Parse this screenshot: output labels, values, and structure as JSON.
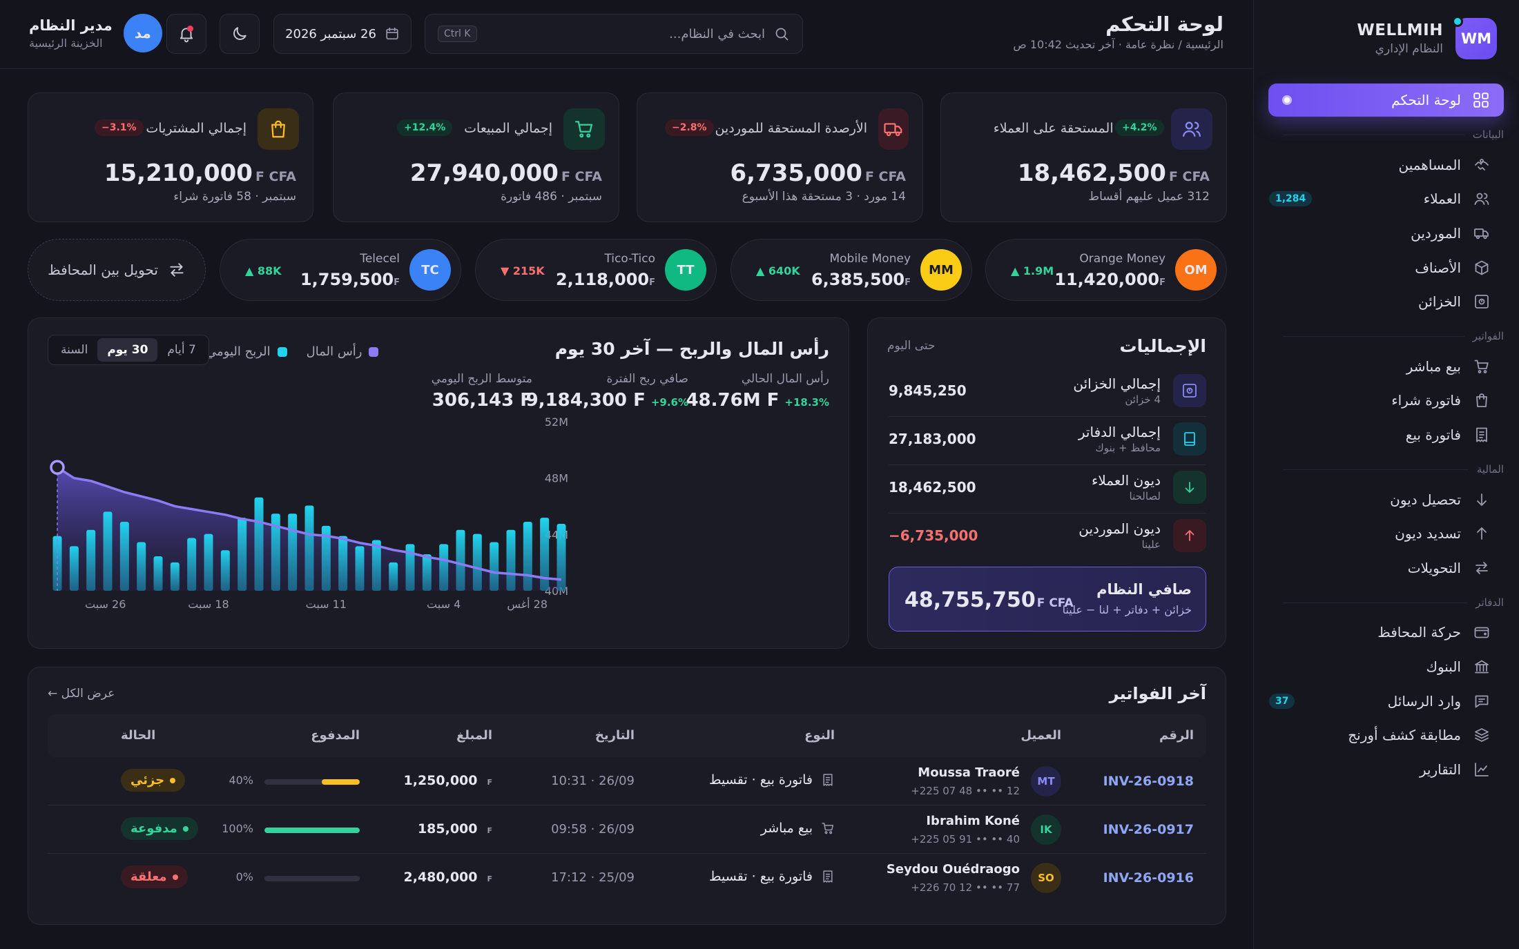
{
  "sidebar": {
    "brand_name": "WELLMIH",
    "brand_sub": "النظام الإداري",
    "brand_logo": "WM",
    "active_item": "لوحة التحكم",
    "sections": {
      "data": "البيانات",
      "invoices": "الفواتير",
      "finance": "المالية",
      "ledgers": "الدفاتر"
    },
    "items": [
      {
        "label": "المساهمين",
        "icon": "handshake-icon"
      },
      {
        "label": "العملاء",
        "icon": "users-icon",
        "badge": "1,284"
      },
      {
        "label": "الموردين",
        "icon": "truck-icon"
      },
      {
        "label": "الأصناف",
        "icon": "box-icon"
      },
      {
        "label": "الخزائن",
        "icon": "safe-icon"
      },
      {
        "label": "بيع مباشر",
        "icon": "cart-icon"
      },
      {
        "label": "فاتورة شراء",
        "icon": "bag-icon"
      },
      {
        "label": "فاتورة بيع",
        "icon": "receipt-icon"
      },
      {
        "label": "تحصيل ديون",
        "icon": "arrow-down-icon"
      },
      {
        "label": "تسديد ديون",
        "icon": "arrow-up-icon"
      },
      {
        "label": "التحويلات",
        "icon": "transfer-icon"
      },
      {
        "label": "حركة المحافظ",
        "icon": "wallet-icon"
      },
      {
        "label": "البنوك",
        "icon": "bank-icon"
      },
      {
        "label": "وارد الرسائل",
        "icon": "message-icon",
        "badge": "37"
      },
      {
        "label": "مطابقة كشف أورنج",
        "icon": "layers-icon"
      },
      {
        "label": "التقارير",
        "icon": "chart-line-icon"
      }
    ]
  },
  "header": {
    "title": "لوحة التحكم",
    "breadcrumb": "الرئيسية / نظرة عامة · آخر تحديث 10:42 ص",
    "search_placeholder": "ابحث في النظام...",
    "search_shortcut": "Ctrl K",
    "date": "26 سبتمبر 2026",
    "user_name": "مدير النظام",
    "user_role": "الخزينة الرئيسية",
    "user_initials": "مد"
  },
  "stats": [
    {
      "label": "الأرصدة المستحقة على العملاء",
      "change": "+4.2%",
      "value": "18,462,500",
      "unit": "F CFA",
      "sub": "312 عميل عليهم أقساط",
      "icon": "users-icon",
      "trend": "up",
      "color": "#8b8bf5"
    },
    {
      "label": "الأرصدة المستحقة للموردين",
      "change": "−2.8%",
      "value": "6,735,000",
      "unit": "F CFA",
      "sub": "14 مورد · 3 مستحقة هذا الأسبوع",
      "icon": "truck-icon",
      "trend": "down",
      "color": "#f87171"
    },
    {
      "label": "إجمالي المبيعات",
      "change": "+12.4%",
      "value": "27,940,000",
      "unit": "F CFA",
      "sub": "سبتمبر · 486 فاتورة",
      "icon": "cart-icon",
      "trend": "up",
      "color": "#34d399"
    },
    {
      "label": "إجمالي المشتريات",
      "change": "−3.1%",
      "value": "15,210,000",
      "unit": "F CFA",
      "sub": "سبتمبر · 58 فاتورة شراء",
      "icon": "bag-icon",
      "trend": "down",
      "color": "#fbbf24"
    }
  ],
  "wallets": [
    {
      "name": "Orange Money",
      "initials": "OM",
      "value": "11,420,000",
      "unit": "F",
      "change": "▲ 1.9M",
      "trend": "up",
      "color": "#f97316"
    },
    {
      "name": "Mobile Money",
      "initials": "MM",
      "value": "6,385,500",
      "unit": "F",
      "change": "▲ 640K",
      "trend": "up",
      "color": "#facc15"
    },
    {
      "name": "Tico-Tico",
      "initials": "TT",
      "value": "2,118,000",
      "unit": "F",
      "change": "▼ 215K",
      "trend": "down",
      "color": "#10b981"
    },
    {
      "name": "Telecel",
      "initials": "TC",
      "value": "1,759,500",
      "unit": "F",
      "change": "▲ 88K",
      "trend": "up",
      "color": "#3b82f6"
    }
  ],
  "transfer_label": "تحويل بين المحافظ",
  "chart_panel": {
    "title": "رأس المال والربح — آخر 30 يوم",
    "legend_capital": "رأس المال",
    "legend_profit": "الربح اليومي",
    "ranges": [
      "7 أيام",
      "30 يوم",
      "السنة"
    ],
    "active_range": "30 يوم",
    "kpi_capital_label": "رأس المال الحالي",
    "kpi_capital_value": "48.76M F",
    "kpi_capital_change": "+18.3%",
    "kpi_profit_label": "صافي ربح الفترة",
    "kpi_profit_value": "9,184,300 F",
    "kpi_profit_change": "+9.6%",
    "kpi_avg_label": "متوسط الربح اليومي",
    "kpi_avg_value": "306,143 F"
  },
  "chart_data": {
    "type": "line",
    "x_tick_labels": [
      "28 أغس",
      "4 سبت",
      "11 سبت",
      "18 سبت",
      "26 سبت"
    ],
    "y_tick_labels": [
      "40M",
      "44M",
      "48M",
      "52M"
    ],
    "ylim": [
      40,
      52
    ],
    "grid": false,
    "x_direction": "right-to-left",
    "series": [
      {
        "name": "رأس المال",
        "color": "#8b7cf6",
        "values": [
          40.8,
          40.9,
          41.1,
          41.2,
          41.3,
          41.6,
          41.9,
          42.2,
          42.4,
          42.7,
          42.9,
          43.2,
          43.4,
          43.7,
          43.9,
          44.0,
          44.3,
          44.6,
          44.9,
          45.1,
          45.4,
          45.6,
          45.8,
          46.0,
          46.4,
          46.7,
          47.0,
          47.4,
          47.8,
          48.0,
          48.76
        ]
      },
      {
        "name": "الربح اليومي",
        "color": "#22d3ee",
        "values": [
          330,
          360,
          340,
          300,
          240,
          280,
          300,
          230,
          180,
          230,
          140,
          250,
          220,
          270,
          320,
          420,
          380,
          380,
          460,
          360,
          200,
          280,
          260,
          140,
          170,
          240,
          340,
          390,
          300,
          220,
          270
        ]
      }
    ]
  },
  "totals": {
    "title": "الإجماليات",
    "subtitle": "حتى اليوم",
    "rows": [
      {
        "label": "إجمالي الخزائن",
        "sub": "4 خزائن",
        "value": "9,845,250",
        "icon": "safe-icon",
        "color": "#8b8bf5"
      },
      {
        "label": "إجمالي الدفاتر",
        "sub": "محافظ + بنوك",
        "value": "27,183,000",
        "icon": "book-icon",
        "color": "#22d3ee"
      },
      {
        "label": "ديون العملاء",
        "sub": "لصالحنا",
        "value": "18,462,500",
        "icon": "arrow-down-icon",
        "color": "#34d399"
      },
      {
        "label": "ديون الموردين",
        "sub": "علينا",
        "value": "−6,735,000",
        "icon": "arrow-up-icon",
        "color": "#f87171"
      }
    ],
    "net_label": "صافي النظام",
    "net_sub": "خزائن + دفاتر + لنا − علينا",
    "net_value": "48,755,750",
    "net_unit": "F CFA"
  },
  "invoices": {
    "title": "آخر الفواتير",
    "view_all": "عرض الكل ←",
    "columns": [
      "الرقم",
      "العميل",
      "النوع",
      "التاريخ",
      "المبلغ",
      "المدفوع",
      "الحالة"
    ],
    "rows": [
      {
        "num": "INV-26-0918",
        "initials": "MT",
        "name": "Moussa Traoré",
        "phone": "+225 07 48 •• •• 12",
        "type": "فاتورة بيع · تقسيط",
        "type_icon": "receipt-icon",
        "date": "10:31 · 26/09",
        "amount": "1,250,000",
        "unit": "F",
        "paid": 0.4,
        "paid_label": "40%",
        "status": "جزئي",
        "status_color": "#fbbf24",
        "avatar_color": "#8b8bf5"
      },
      {
        "num": "INV-26-0917",
        "initials": "IK",
        "name": "Ibrahim Koné",
        "phone": "+225 05 91 •• •• 40",
        "type": "بيع مباشر",
        "type_icon": "cart-icon",
        "date": "09:58 · 26/09",
        "amount": "185,000",
        "unit": "F",
        "paid": 1.0,
        "paid_label": "100%",
        "status": "مدفوعة",
        "status_color": "#34d399",
        "avatar_color": "#34d399"
      },
      {
        "num": "INV-26-0916",
        "initials": "SO",
        "name": "Seydou Ouédraogo",
        "phone": "+226 70 12 •• •• 77",
        "type": "فاتورة بيع · تقسيط",
        "type_icon": "receipt-icon",
        "date": "17:12 · 25/09",
        "amount": "2,480,000",
        "unit": "F",
        "paid": 0.0,
        "paid_label": "0%",
        "status": "معلقة",
        "status_color": "#f87171",
        "avatar_color": "#fbbf24"
      }
    ]
  }
}
